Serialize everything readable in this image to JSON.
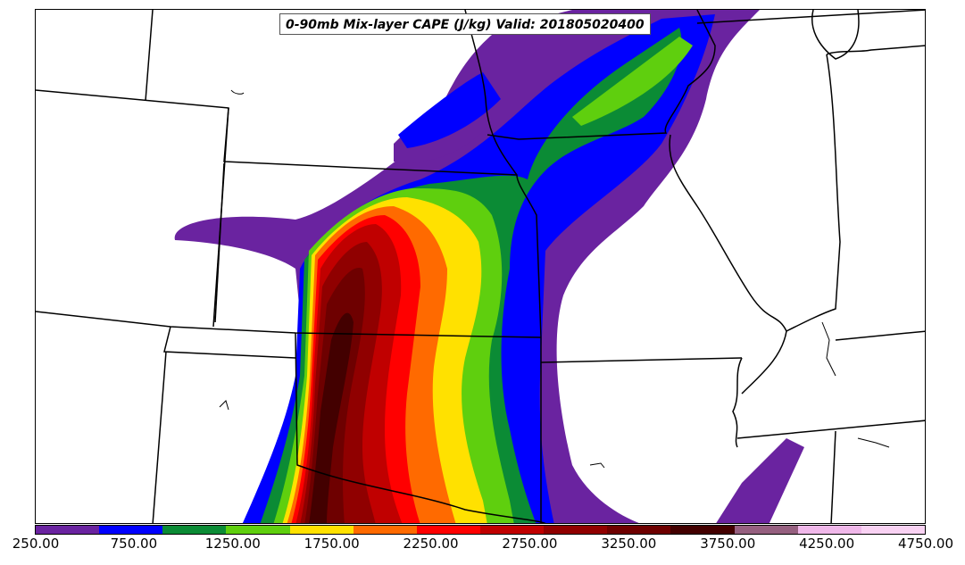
{
  "title": "0-90mb Mix-layer CAPE (J/kg) Valid: 201805020400",
  "colorbar": {
    "colors": [
      "#6a23a0",
      "#0000ff",
      "#0b8b35",
      "#5fcf0e",
      "#ffe100",
      "#ff6a00",
      "#ff0000",
      "#c00000",
      "#900000",
      "#6e0000",
      "#430000",
      "#966080",
      "#f0b8ea",
      "#f9d2f3"
    ],
    "tick_labels": [
      "250.00",
      "750.00",
      "1250.00",
      "1750.00",
      "2250.00",
      "2750.00",
      "3250.00",
      "3750.00",
      "4250.00",
      "4750.00"
    ]
  }
}
